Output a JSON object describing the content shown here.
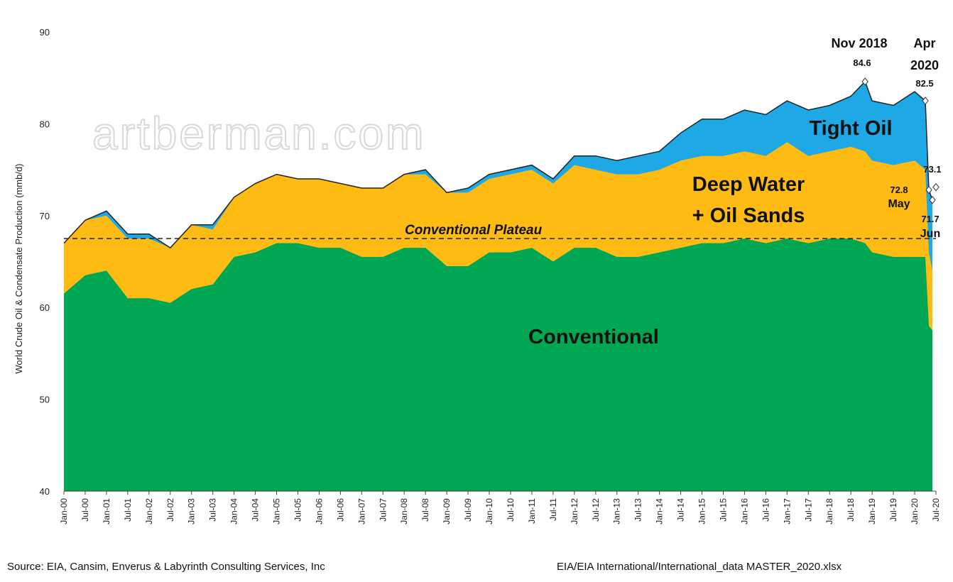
{
  "chart_data": {
    "type": "area",
    "ylabel": "World Crude Oil & Condensate Production  (mmb/d)",
    "ylim": [
      40,
      90
    ],
    "yticks": [
      40,
      50,
      60,
      70,
      80,
      90
    ],
    "x_tick_labels": [
      "Jan-00",
      "Jul-00",
      "Jan-01",
      "Jul-01",
      "Jan-02",
      "Jul-02",
      "Jan-03",
      "Jul-03",
      "Jan-04",
      "Jul-04",
      "Jan-05",
      "Jul-05",
      "Jan-06",
      "Jul-06",
      "Jan-07",
      "Jul-07",
      "Jan-08",
      "Jul-08",
      "Jan-09",
      "Jul-09",
      "Jan-10",
      "Jul-10",
      "Jan-11",
      "Jul-11",
      "Jan-12",
      "Jul-12",
      "Jan-13",
      "Jul-13",
      "Jan-14",
      "Jul-14",
      "Jan-15",
      "Jul-15",
      "Jan-16",
      "Jul-16",
      "Jan-17",
      "Jul-17",
      "Jan-18",
      "Jul-18",
      "Jan-19",
      "Jul-19",
      "Jan-20",
      "Jul-20"
    ],
    "x": [
      "Jan-00",
      "Jul-00",
      "Jan-01",
      "Jul-01",
      "Jan-02",
      "Jul-02",
      "Jan-03",
      "Jul-03",
      "Jan-04",
      "Jul-04",
      "Jan-05",
      "Jul-05",
      "Jan-06",
      "Jul-06",
      "Jan-07",
      "Jul-07",
      "Jan-08",
      "Jul-08",
      "Jan-09",
      "Jul-09",
      "Jan-10",
      "Jul-10",
      "Jan-11",
      "Jul-11",
      "Jan-12",
      "Jul-12",
      "Jan-13",
      "Jul-13",
      "Jan-14",
      "Jul-14",
      "Jan-15",
      "Jul-15",
      "Jan-16",
      "Jul-16",
      "Jan-17",
      "Jul-17",
      "Jan-18",
      "Jul-18",
      "Nov-18",
      "Jan-19",
      "Jul-19",
      "Jan-20",
      "Apr-20",
      "May-20",
      "Jun-20"
    ],
    "series": [
      {
        "name": "Conventional",
        "values": [
          61.5,
          63.5,
          64,
          61,
          61,
          60.5,
          62,
          62.5,
          65.5,
          66,
          67,
          67,
          66.5,
          66.5,
          65.5,
          65.5,
          66.5,
          66.5,
          64.5,
          64.5,
          66,
          66,
          66.5,
          65,
          66.5,
          66.5,
          65.5,
          65.5,
          66,
          66.5,
          67,
          67,
          67.5,
          67,
          67.5,
          67,
          67.5,
          67.5,
          67,
          66,
          65.5,
          65.5,
          65.5,
          58,
          57.5
        ]
      },
      {
        "name": "Deep Water + Oil Sands",
        "values": [
          67,
          69.5,
          70,
          67.5,
          67.5,
          66.5,
          69,
          68.5,
          72,
          73.5,
          74.5,
          74,
          74,
          73.5,
          73,
          73,
          74.5,
          74.5,
          72.5,
          72.5,
          74,
          74.5,
          75,
          73.5,
          75.5,
          75,
          74.5,
          74.5,
          75,
          76,
          76.5,
          76.5,
          77,
          76.5,
          78,
          76.5,
          77,
          77.5,
          77,
          76,
          75.5,
          76,
          75,
          66,
          64
        ]
      },
      {
        "name": "Tight Oil",
        "values": [
          67,
          69.5,
          70.5,
          68,
          68,
          66.5,
          69,
          69,
          72,
          73.5,
          74.5,
          74,
          74,
          73.5,
          73,
          73,
          74.5,
          75,
          72.5,
          73,
          74.5,
          75,
          75.5,
          74,
          76.5,
          76.5,
          76,
          76.5,
          77,
          79,
          80.5,
          80.5,
          81.5,
          81,
          82.5,
          81.5,
          82,
          83,
          84.6,
          82.5,
          82,
          83.5,
          82.5,
          72.8,
          71.7
        ]
      }
    ],
    "plateau": {
      "label": "Conventional Plateau",
      "value": 67.5
    },
    "colors": {
      "Conventional": "#00a651",
      "Deep Water + Oil Sands": "#fdbb13",
      "Tight Oil": "#1ea8e6",
      "outline": "#222222",
      "plateau": "#222222"
    },
    "area_labels": {
      "conventional": "Conventional",
      "deepwater_line1": "Deep Water",
      "deepwater_line2": "+ Oil Sands",
      "tight": "Tight Oil"
    },
    "annotations": [
      {
        "title": "Nov 2018",
        "value_text": "84.6",
        "date": "Nov-18",
        "value": 84.6
      },
      {
        "title_line1": "Apr",
        "title_line2": "2020",
        "value_text": "82.5",
        "date": "Apr-20",
        "value": 82.5
      },
      {
        "value_text": "73.1",
        "sub": "",
        "date": "Jul-20",
        "value": 73.1
      },
      {
        "value_text": "72.8",
        "sub": "May",
        "date": "May-20",
        "value": 72.8
      },
      {
        "value_text": "71.7",
        "sub": "Jun",
        "date": "Jun-20",
        "value": 71.7
      }
    ],
    "watermark": "artberman.com",
    "grid": false,
    "legend": "none"
  },
  "footer": {
    "source_left": "Source: EIA, Cansim, Enverus & Labyrinth Consulting Services, Inc",
    "source_right": "EIA/EIA International/International_data  MASTER_2020.xlsx"
  }
}
